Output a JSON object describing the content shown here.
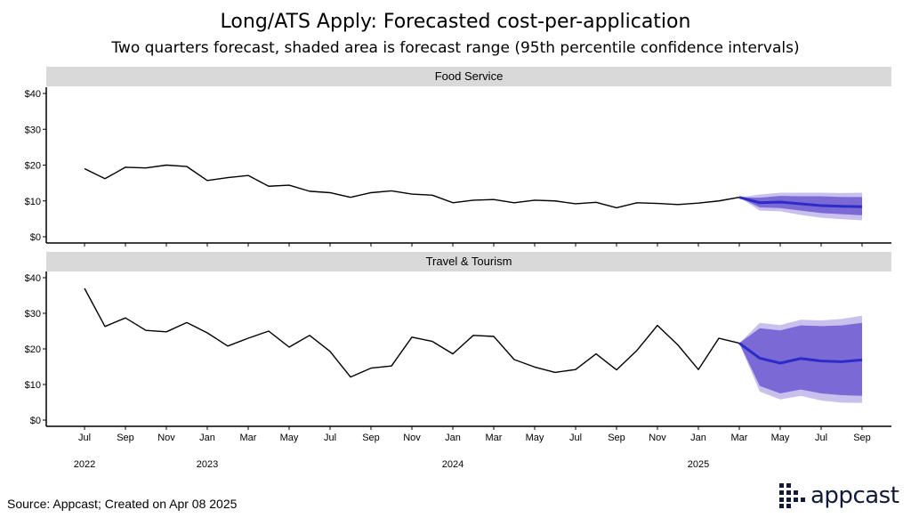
{
  "title": "Long/ATS Apply: Forecasted cost-per-application",
  "subtitle": "Two quarters forecast, shaded area is forecast range (95th percentile confidence intervals)",
  "source": "Source: Appcast; Created on Apr 08 2025",
  "logo_text": "appcast",
  "colors": {
    "history_line": "#000000",
    "forecast_line": "#2b2bc8",
    "ci_inner": "#7b6ad6",
    "ci_outer": "#c9c0ee",
    "panel_strip": "#d9d9d9"
  },
  "chart_data": [
    {
      "type": "line",
      "panel_title": "Food Service",
      "ylim": [
        0,
        40
      ],
      "y_ticks": [
        "$0",
        "$10",
        "$20",
        "$30",
        "$40"
      ],
      "y_tick_values": [
        0,
        10,
        20,
        30,
        40
      ],
      "x_tick_labels": [
        "Jul",
        "Sep",
        "Nov",
        "Jan",
        "Mar",
        "May",
        "Jul",
        "Sep",
        "Nov",
        "Jan",
        "Mar",
        "May",
        "Jul",
        "Sep",
        "Nov",
        "Jan",
        "Mar",
        "May",
        "Jul",
        "Sep"
      ],
      "x_tick_months": [
        "2022-07",
        "2022-09",
        "2022-11",
        "2023-01",
        "2023-03",
        "2023-05",
        "2023-07",
        "2023-09",
        "2023-11",
        "2024-01",
        "2024-03",
        "2024-05",
        "2024-07",
        "2024-09",
        "2024-11",
        "2025-01",
        "2025-03",
        "2025-05",
        "2025-07",
        "2025-09"
      ],
      "year_labels": [
        "2022",
        "2023",
        "2024",
        "2025"
      ],
      "year_label_months": [
        "2022-07",
        "2023-01",
        "2024-01",
        "2025-01"
      ],
      "series": [
        {
          "x": [
            "2022-07",
            "2022-08",
            "2022-09",
            "2022-10",
            "2022-11",
            "2022-12",
            "2023-01",
            "2023-02",
            "2023-03",
            "2023-04",
            "2023-05",
            "2023-06",
            "2023-07",
            "2023-08",
            "2023-09",
            "2023-10",
            "2023-11",
            "2023-12",
            "2024-01",
            "2024-02",
            "2024-03",
            "2024-04",
            "2024-05",
            "2024-06",
            "2024-07",
            "2024-08",
            "2024-09",
            "2024-10",
            "2024-11",
            "2024-12",
            "2025-01",
            "2025-02",
            "2025-03"
          ],
          "y": [
            19.0,
            16.2,
            19.4,
            19.2,
            20.0,
            19.6,
            15.7,
            16.5,
            17.1,
            14.1,
            14.4,
            12.7,
            12.3,
            11.0,
            12.3,
            12.8,
            11.9,
            11.6,
            9.5,
            10.2,
            10.4,
            9.5,
            10.2,
            10.0,
            9.2,
            9.6,
            8.1,
            9.5,
            9.3,
            9.0,
            9.4,
            10.0,
            11.0
          ]
        },
        {
          "x": [
            "2025-03",
            "2025-04",
            "2025-05",
            "2025-06",
            "2025-07",
            "2025-08",
            "2025-09"
          ],
          "y": [
            11.0,
            9.5,
            9.7,
            9.2,
            8.7,
            8.5,
            8.4
          ],
          "lo80": [
            11.0,
            8.2,
            8.0,
            7.3,
            6.6,
            6.3,
            6.0
          ],
          "hi80": [
            11.0,
            10.9,
            11.4,
            11.3,
            11.3,
            11.1,
            11.1
          ],
          "lo95": [
            11.0,
            7.3,
            7.1,
            6.1,
            5.3,
            4.9,
            4.6
          ],
          "hi95": [
            11.0,
            11.8,
            12.3,
            12.3,
            12.3,
            12.2,
            12.3
          ]
        }
      ]
    },
    {
      "type": "line",
      "panel_title": "Travel & Tourism",
      "ylim": [
        0,
        40
      ],
      "y_ticks": [
        "$0",
        "$10",
        "$20",
        "$30",
        "$40"
      ],
      "y_tick_values": [
        0,
        10,
        20,
        30,
        40
      ],
      "series": [
        {
          "x": [
            "2022-07",
            "2022-08",
            "2022-09",
            "2022-10",
            "2022-11",
            "2022-12",
            "2023-01",
            "2023-02",
            "2023-03",
            "2023-04",
            "2023-05",
            "2023-06",
            "2023-07",
            "2023-08",
            "2023-09",
            "2023-10",
            "2023-11",
            "2023-12",
            "2024-01",
            "2024-02",
            "2024-03",
            "2024-04",
            "2024-05",
            "2024-06",
            "2024-07",
            "2024-08",
            "2024-09",
            "2024-10",
            "2024-11",
            "2024-12",
            "2025-01",
            "2025-02",
            "2025-03"
          ],
          "y": [
            37.0,
            26.3,
            28.7,
            25.2,
            24.8,
            27.4,
            24.5,
            20.8,
            23.0,
            25.0,
            20.5,
            23.8,
            19.3,
            12.1,
            14.6,
            15.2,
            23.3,
            22.1,
            18.6,
            23.8,
            23.5,
            17.0,
            14.9,
            13.4,
            14.2,
            18.6,
            14.1,
            19.6,
            26.6,
            21.1,
            14.2,
            23.0,
            21.6
          ]
        },
        {
          "x": [
            "2025-03",
            "2025-04",
            "2025-05",
            "2025-06",
            "2025-07",
            "2025-08",
            "2025-09"
          ],
          "y": [
            21.6,
            17.4,
            16.0,
            17.3,
            16.6,
            16.4,
            16.9
          ],
          "lo80": [
            21.6,
            9.6,
            7.5,
            8.6,
            7.5,
            7.0,
            6.8
          ],
          "hi80": [
            21.6,
            25.8,
            25.2,
            26.6,
            26.4,
            26.6,
            27.3
          ],
          "lo95": [
            21.6,
            8.0,
            5.8,
            6.8,
            5.5,
            4.9,
            4.8
          ],
          "hi95": [
            21.6,
            27.3,
            26.7,
            28.2,
            28.0,
            28.4,
            29.3
          ]
        }
      ]
    }
  ]
}
